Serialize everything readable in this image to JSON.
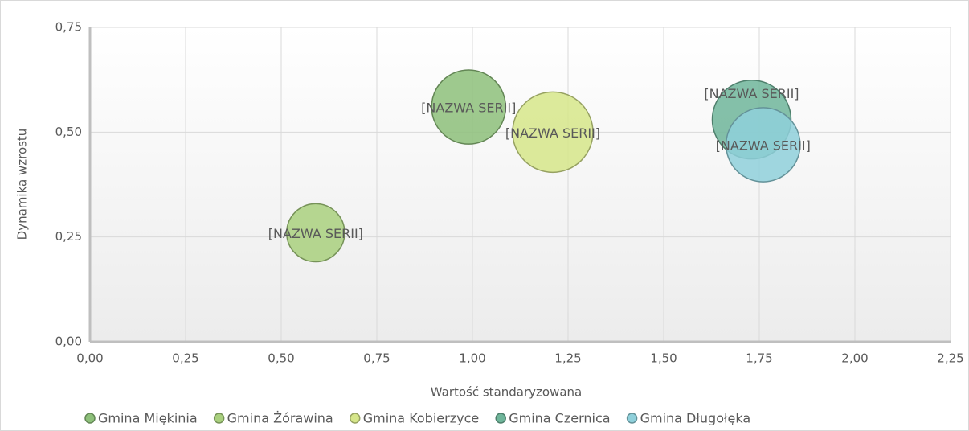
{
  "chart_data": {
    "type": "bubble",
    "x_label": "Wartość standaryzowana",
    "y_label": "Dynamika wzrostu",
    "xlim": [
      0,
      2.25
    ],
    "ylim": [
      0,
      0.75
    ],
    "xticks": [
      {
        "value": 0,
        "label": "0,00"
      },
      {
        "value": 0.25,
        "label": "0,25"
      },
      {
        "value": 0.5,
        "label": "0,50"
      },
      {
        "value": 0.75,
        "label": "0,75"
      },
      {
        "value": 1,
        "label": "1,00"
      },
      {
        "value": 1.25,
        "label": "1,25"
      },
      {
        "value": 1.5,
        "label": "1,50"
      },
      {
        "value": 1.75,
        "label": "1,75"
      },
      {
        "value": 2,
        "label": "2,00"
      },
      {
        "value": 2.25,
        "label": "2,25"
      }
    ],
    "yticks": [
      {
        "value": 0,
        "label": "0,00"
      },
      {
        "value": 0.25,
        "label": "0,25"
      },
      {
        "value": 0.5,
        "label": "0,50"
      },
      {
        "value": 0.75,
        "label": "0,75"
      }
    ],
    "grid": true,
    "legend": "bottom",
    "series": [
      {
        "name": "Gmina Miękinia",
        "color": "#8dc07a",
        "x": [
          0.99
        ],
        "values": [
          0.56
        ],
        "sizes": [
          85
        ],
        "value_labels": [
          "[NAZWA SERII]"
        ]
      },
      {
        "name": "Gmina Żórawina",
        "color": "#a9d07e",
        "x": [
          0.59
        ],
        "values": [
          0.26
        ],
        "sizes": [
          52
        ],
        "value_labels": [
          "[NAZWA SERII]"
        ]
      },
      {
        "name": "Gmina Kobierzyce",
        "color": "#d6e68a",
        "x": [
          1.21
        ],
        "values": [
          0.5
        ],
        "sizes": [
          100
        ],
        "value_labels": [
          "[NAZWA SERII]"
        ]
      },
      {
        "name": "Gmina Czernica",
        "color": "#6fb59a",
        "x": [
          1.73
        ],
        "values": [
          0.53
        ],
        "sizes": [
          96
        ],
        "value_labels": [
          "[NAZWA SERII]"
        ]
      },
      {
        "name": "Gmina Długołęka",
        "color": "#8fd0db",
        "x": [
          1.76
        ],
        "values": [
          0.47
        ],
        "sizes": [
          85
        ],
        "value_labels": [
          "[NAZWA SERII]"
        ]
      }
    ]
  }
}
